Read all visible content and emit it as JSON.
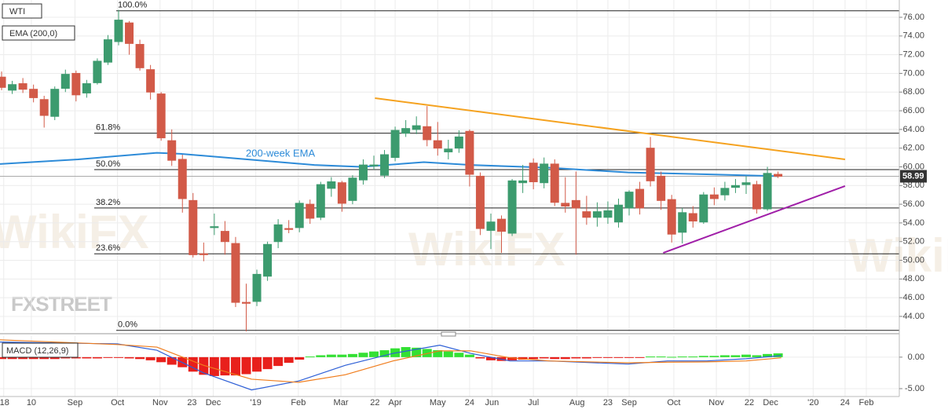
{
  "chart_data": [
    {
      "type": "candlestick",
      "title": "WTI",
      "subtitle": "EMA (200,0)",
      "xlim": [
        -0.15,
        84.4
      ],
      "ylim": [
        42.4,
        77.85
      ],
      "yticks": [
        {
          "value": 44,
          "label": "44.00"
        },
        {
          "value": 46,
          "label": "46.00"
        },
        {
          "value": 48,
          "label": "48.00"
        },
        {
          "value": 50,
          "label": "50.00"
        },
        {
          "value": 52,
          "label": "52.00"
        },
        {
          "value": 54,
          "label": "54.00"
        },
        {
          "value": 56,
          "label": "56.00"
        },
        {
          "value": 58,
          "label": "58.00"
        },
        {
          "value": 60,
          "label": "60.00"
        },
        {
          "value": 62,
          "label": "62.00"
        },
        {
          "value": 64,
          "label": "64.00"
        },
        {
          "value": 66,
          "label": "66.00"
        },
        {
          "value": 68,
          "label": "68.00"
        },
        {
          "value": 70,
          "label": "70.00"
        },
        {
          "value": 72,
          "label": "72.00"
        },
        {
          "value": 74,
          "label": "74.00"
        },
        {
          "value": 76,
          "label": "76.00"
        }
      ],
      "xticks": [
        {
          "value": 0.2,
          "label": "'18"
        },
        {
          "value": 2.8,
          "label": "10"
        },
        {
          "value": 6.9,
          "label": "Sep"
        },
        {
          "value": 10.9,
          "label": "Oct"
        },
        {
          "value": 14.9,
          "label": "Nov"
        },
        {
          "value": 17.9,
          "label": "23"
        },
        {
          "value": 19.9,
          "label": "Dec"
        },
        {
          "value": 23.9,
          "label": "'19"
        },
        {
          "value": 27.9,
          "label": "Feb"
        },
        {
          "value": 31.9,
          "label": "Mar"
        },
        {
          "value": 35.1,
          "label": "22"
        },
        {
          "value": 37.0,
          "label": "Apr"
        },
        {
          "value": 41.0,
          "label": "May"
        },
        {
          "value": 44.0,
          "label": "24"
        },
        {
          "value": 46.1,
          "label": "Jun"
        },
        {
          "value": 50.0,
          "label": "Jul"
        },
        {
          "value": 54.1,
          "label": "Aug"
        },
        {
          "value": 57.0,
          "label": "23"
        },
        {
          "value": 59.0,
          "label": "Sep"
        },
        {
          "value": 63.2,
          "label": "Oct"
        },
        {
          "value": 67.2,
          "label": "Nov"
        },
        {
          "value": 70.3,
          "label": "22"
        },
        {
          "value": 72.3,
          "label": "Dec"
        },
        {
          "value": 76.3,
          "label": "'20"
        },
        {
          "value": 79.3,
          "label": "24"
        },
        {
          "value": 81.3,
          "label": "Feb"
        }
      ],
      "grid": true,
      "up_color": "#3c9b6e",
      "down_color": "#d25a48",
      "open": [
        69.6,
        68.2,
        68.9,
        68.3,
        67.2,
        65.4,
        68.4,
        70.0,
        67.9,
        69.0,
        71.2,
        73.4,
        75.4,
        73.1,
        70.4,
        67.8,
        62.8,
        60.8,
        56.4,
        50.7,
        53.5,
        53.1,
        51.8,
        45.5,
        45.6,
        48.3,
        52.0,
        53.4,
        53.5,
        56.0,
        54.6,
        57.7,
        58.3,
        56.4,
        58.6,
        60.1,
        59.1,
        61.0,
        63.6,
        64.0,
        64.3,
        62.8,
        61.6,
        62.0,
        63.8,
        59.0,
        53.2,
        54.4,
        52.9,
        58.3,
        60.4,
        58.3,
        60.3,
        56.1,
        56.4,
        55.2,
        54.6,
        54.6,
        54.1,
        55.6,
        57.6,
        62.0,
        59.0,
        56.5,
        53.0,
        55.0,
        54.1,
        57.0,
        57.0,
        57.8,
        58.1,
        58.1,
        55.5,
        59.2
      ],
      "high": [
        70.2,
        69.2,
        69.5,
        68.8,
        67.6,
        68.6,
        70.4,
        70.3,
        69.3,
        71.6,
        74.1,
        76.8,
        75.6,
        73.6,
        70.9,
        68.0,
        64.0,
        61.3,
        57.2,
        51.9,
        55.0,
        54.2,
        52.5,
        47.5,
        49.0,
        52.0,
        54.4,
        54.3,
        56.4,
        56.5,
        58.4,
        58.9,
        58.5,
        59.1,
        60.8,
        61.2,
        61.8,
        64.3,
        65.0,
        65.4,
        66.5,
        64.8,
        62.9,
        63.9,
        64.0,
        59.4,
        55.0,
        54.8,
        58.7,
        60.2,
        60.9,
        61.0,
        60.8,
        58.9,
        59.5,
        56.9,
        56.2,
        56.3,
        56.6,
        57.5,
        58.4,
        63.2,
        59.5,
        57.0,
        55.6,
        55.8,
        57.3,
        57.8,
        58.4,
        58.7,
        59.0,
        58.5,
        60.0,
        59.5
      ],
      "low": [
        68.2,
        67.8,
        67.9,
        66.9,
        64.2,
        65.0,
        68.0,
        67.0,
        67.4,
        68.8,
        70.9,
        73.0,
        72.0,
        70.3,
        67.2,
        62.8,
        60.1,
        55.1,
        50.3,
        49.9,
        52.7,
        50.6,
        45.0,
        42.4,
        45.1,
        47.8,
        51.3,
        52.9,
        53.0,
        53.9,
        54.3,
        56.8,
        55.2,
        56.0,
        58.1,
        59.7,
        58.8,
        60.6,
        63.2,
        63.5,
        62.2,
        61.2,
        60.8,
        61.5,
        57.9,
        52.7,
        51.2,
        50.8,
        52.6,
        57.2,
        57.6,
        57.7,
        55.8,
        55.1,
        50.6,
        53.8,
        53.6,
        53.9,
        53.5,
        54.8,
        54.9,
        57.9,
        55.4,
        51.9,
        51.8,
        53.5,
        53.9,
        55.9,
        56.4,
        57.2,
        57.1,
        55.0,
        55.3,
        58.8
      ],
      "close": [
        68.5,
        68.8,
        68.3,
        67.4,
        65.5,
        68.3,
        69.9,
        67.7,
        68.9,
        71.3,
        73.6,
        75.7,
        73.2,
        70.6,
        68.0,
        63.1,
        60.7,
        56.6,
        50.6,
        50.6,
        53.6,
        52.0,
        45.5,
        45.4,
        48.5,
        51.7,
        53.8,
        53.3,
        56.1,
        54.5,
        58.1,
        58.4,
        56.1,
        58.8,
        60.2,
        60.2,
        61.3,
        63.9,
        64.1,
        64.4,
        62.9,
        62.0,
        61.9,
        63.2,
        59.2,
        53.4,
        54.1,
        53.1,
        58.5,
        58.5,
        58.4,
        60.3,
        56.2,
        55.8,
        55.6,
        54.6,
        55.2,
        55.3,
        55.9,
        57.3,
        55.6,
        58.5,
        56.4,
        52.8,
        55.1,
        54.2,
        57.0,
        56.6,
        57.7,
        58.0,
        58.3,
        55.5,
        59.3,
        58.99
      ],
      "fib_levels": [
        {
          "label": "100.0%",
          "value": 76.7
        },
        {
          "label": "61.8%",
          "value": 63.6
        },
        {
          "label": "50.0%",
          "value": 59.7
        },
        {
          "label": "38.2%",
          "value": 55.6
        },
        {
          "label": "23.6%",
          "value": 50.7
        },
        {
          "label": "0.0%",
          "value": 42.5
        }
      ],
      "series": [
        {
          "name": "200-week EMA",
          "color": "#2d8bd8",
          "x": [
            -0.15,
            7.2,
            14.6,
            16.8,
            22,
            29.4,
            33.8,
            39.7,
            44.1,
            51.5,
            58.9,
            66.3,
            73
          ],
          "values": [
            60.3,
            60.8,
            61.5,
            61.4,
            60.9,
            60.2,
            60.0,
            60.5,
            60.2,
            59.9,
            59.4,
            59.2,
            59.0
          ]
        }
      ],
      "lines": [
        {
          "color": "#f5a21f",
          "x": [
            35.1,
            79.3
          ],
          "values": [
            67.35,
            60.8
          ]
        },
        {
          "color": "#a01fa8",
          "x": [
            62.2,
            79.3
          ],
          "values": [
            50.8,
            57.95
          ]
        }
      ],
      "watermarks": [
        "FXSTREET",
        "WikiFX"
      ]
    },
    {
      "type": "bar",
      "title": "MACD (12,26,9)",
      "ylim": [
        -6,
        3.1
      ],
      "yticks": [
        {
          "value": 0,
          "label": "0.00"
        },
        {
          "value": -5,
          "label": "-5.00"
        }
      ],
      "up_color": "#33e033",
      "down_color": "#e8201c",
      "values": [
        -0.3,
        -0.3,
        -0.3,
        -0.3,
        -0.3,
        -0.3,
        -0.2,
        -0.2,
        -0.2,
        -0.2,
        -0.1,
        -0.1,
        -0.2,
        -0.3,
        -0.5,
        -0.8,
        -1.2,
        -1.6,
        -2.3,
        -2.8,
        -3.0,
        -2.9,
        -2.9,
        -2.7,
        -2.3,
        -1.9,
        -1.4,
        -0.9,
        -0.4,
        0.1,
        0.3,
        0.4,
        0.4,
        0.5,
        0.7,
        0.9,
        1.1,
        1.4,
        1.6,
        1.5,
        1.3,
        1.1,
        0.9,
        0.7,
        0.4,
        -0.2,
        -0.5,
        -0.6,
        -0.5,
        -0.4,
        -0.3,
        -0.2,
        -0.3,
        -0.3,
        -0.2,
        -0.2,
        -0.1,
        -0.1,
        -0.1,
        -0.1,
        -0.1,
        0.1,
        0.1,
        0.05,
        0.1,
        0.1,
        0.2,
        0.2,
        0.3,
        0.3,
        0.4,
        0.3,
        0.5,
        0.6
      ],
      "series": [
        {
          "color": "#2e5fd6",
          "x": [
            -0.15,
            10.9,
            14.6,
            19.0,
            23.5,
            27.9,
            32.3,
            36.8,
            41.2,
            44.1,
            47.8,
            51.5,
            58.9,
            62.6,
            66.3,
            70.0,
            73.3
          ],
          "values": [
            2.4,
            2.1,
            1.1,
            -2.5,
            -5.2,
            -3.8,
            -1.3,
            0.6,
            1.9,
            0.6,
            -0.6,
            -0.6,
            -1.1,
            -0.6,
            -0.6,
            -0.25,
            0.25
          ]
        },
        {
          "color": "#f07c1b",
          "x": [
            -0.15,
            10.9,
            14.6,
            19.0,
            23.5,
            27.9,
            32.3,
            36.8,
            41.2,
            44.1,
            47.8,
            51.5,
            58.9,
            62.6,
            66.3,
            70.0,
            73.3
          ],
          "values": [
            2.75,
            2.0,
            1.6,
            -1.3,
            -3.5,
            -4.0,
            -2.8,
            -0.6,
            1.0,
            1.0,
            -0.1,
            -0.6,
            -0.9,
            -0.8,
            -0.75,
            -0.6,
            -0.1
          ]
        }
      ]
    }
  ]
}
